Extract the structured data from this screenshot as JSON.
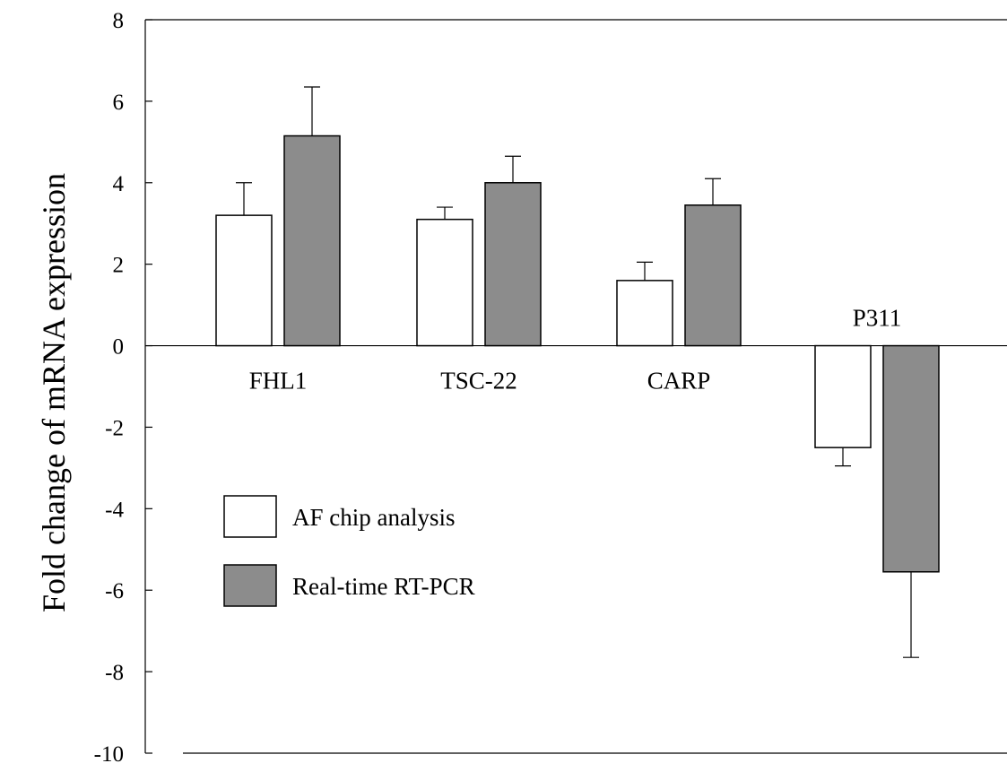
{
  "chart_data": {
    "type": "bar",
    "categories": [
      "FHL1",
      "TSC-22",
      "CARP",
      "P311"
    ],
    "series": [
      {
        "name": "AF chip analysis",
        "values": [
          3.2,
          3.1,
          1.6,
          -2.5
        ],
        "errors": [
          0.8,
          0.3,
          0.45,
          0.45
        ],
        "color": "#ffffff"
      },
      {
        "name": "Real-time RT-PCR",
        "values": [
          5.15,
          4.0,
          3.45,
          -5.55
        ],
        "errors": [
          1.2,
          0.65,
          0.65,
          2.1
        ],
        "color": "#8c8c8c"
      }
    ],
    "yticks": [
      8,
      6,
      4,
      2,
      0,
      -2,
      -4,
      -6,
      -8,
      -10
    ],
    "tick_labels": [
      "8",
      "6",
      "4",
      "2",
      "0",
      "-2",
      "-4",
      "-6",
      "-8",
      "-10"
    ],
    "title": "",
    "xlabel": "",
    "ylabel": "Fold change of mRNA expression",
    "ylim": [
      -10,
      8
    ],
    "grid": false,
    "legend_position": "lower-left"
  }
}
